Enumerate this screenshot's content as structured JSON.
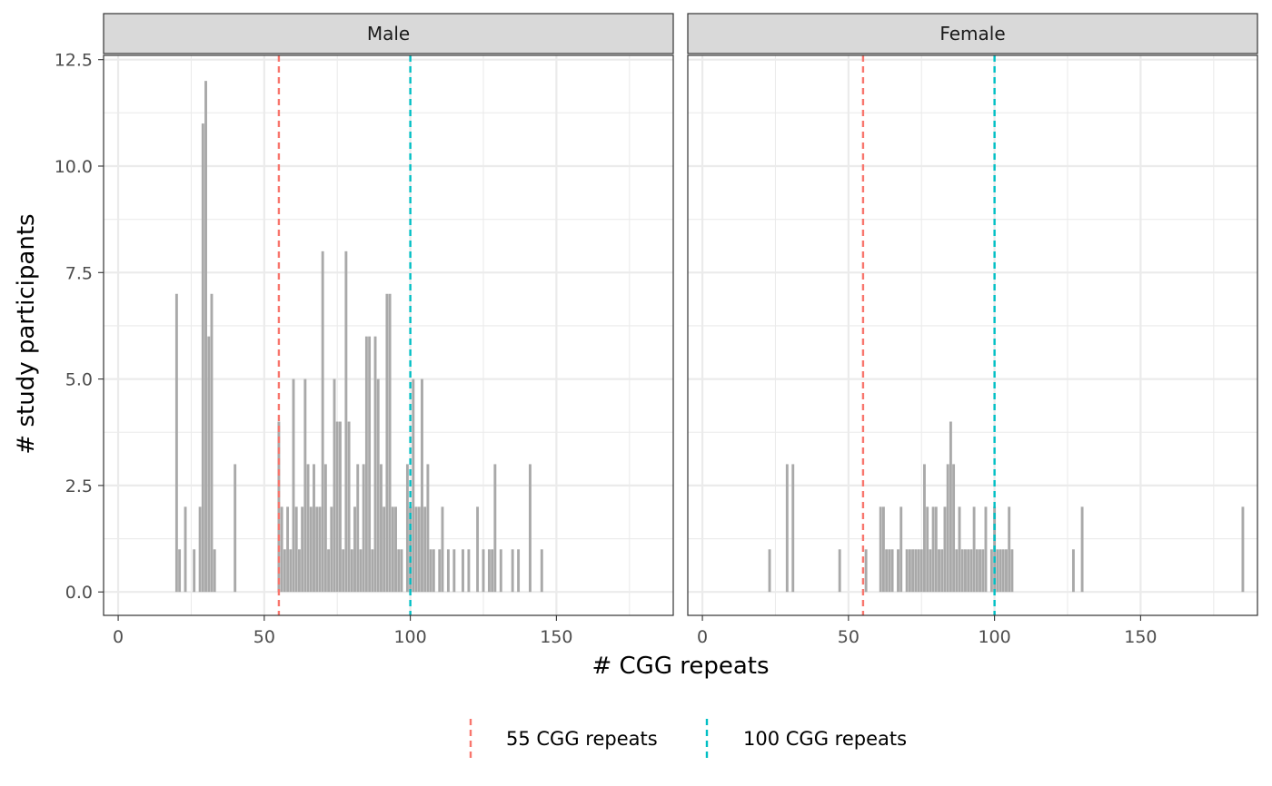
{
  "chart_data": {
    "type": "bar",
    "xlabel": "# CGG repeats",
    "ylabel": "# study participants",
    "xlim": [
      -5,
      190
    ],
    "ylim": [
      -0.55,
      12.6
    ],
    "x_ticks": [
      0,
      50,
      100,
      150
    ],
    "y_ticks": [
      0.0,
      2.5,
      5.0,
      7.5,
      10.0,
      12.5
    ],
    "y_tick_labels": [
      "0.0",
      "2.5",
      "5.0",
      "7.5",
      "10.0",
      "12.5"
    ],
    "bar_color": "#a9a9a9",
    "grid": true,
    "reference_lines": [
      {
        "x": 55,
        "label": "55 CGG repeats",
        "color": "#f8766d",
        "style": "dashed"
      },
      {
        "x": 100,
        "label": "100 CGG repeats",
        "color": "#00bfc4",
        "style": "dashed"
      }
    ],
    "legend": {
      "position": "bottom"
    },
    "panels": [
      {
        "name": "Male",
        "x": [
          20,
          21,
          23,
          26,
          28,
          29,
          30,
          31,
          32,
          33,
          40,
          55,
          56,
          57,
          58,
          59,
          60,
          61,
          62,
          63,
          64,
          65,
          66,
          67,
          68,
          69,
          70,
          71,
          72,
          73,
          74,
          75,
          76,
          77,
          78,
          79,
          80,
          81,
          82,
          83,
          84,
          85,
          86,
          87,
          88,
          89,
          90,
          91,
          92,
          93,
          94,
          95,
          96,
          97,
          99,
          100,
          101,
          102,
          103,
          104,
          105,
          106,
          107,
          108,
          110,
          111,
          113,
          115,
          118,
          120,
          123,
          125,
          127,
          128,
          129,
          131,
          135,
          137,
          141,
          145
        ],
        "values": [
          7,
          1,
          2,
          1,
          2,
          11,
          12,
          6,
          7,
          1,
          3,
          4,
          2,
          1,
          2,
          1,
          5,
          2,
          1,
          2,
          5,
          3,
          2,
          3,
          2,
          2,
          8,
          3,
          1,
          2,
          5,
          4,
          4,
          1,
          8,
          4,
          1,
          2,
          3,
          1,
          3,
          6,
          6,
          1,
          6,
          5,
          3,
          2,
          7,
          7,
          2,
          2,
          1,
          1,
          3,
          2,
          5,
          2,
          2,
          5,
          2,
          3,
          1,
          1,
          1,
          2,
          1,
          1,
          1,
          1,
          2,
          1,
          1,
          1,
          3,
          1,
          1,
          1,
          3,
          1
        ]
      },
      {
        "name": "Female",
        "x": [
          23,
          29,
          31,
          47,
          56,
          61,
          62,
          63,
          64,
          65,
          67,
          68,
          70,
          71,
          72,
          73,
          74,
          75,
          76,
          77,
          78,
          79,
          80,
          81,
          82,
          83,
          84,
          85,
          86,
          87,
          88,
          89,
          90,
          91,
          92,
          93,
          94,
          95,
          96,
          97,
          99,
          100,
          101,
          102,
          103,
          104,
          105,
          106,
          127,
          130,
          185
        ],
        "values": [
          1,
          3,
          3,
          1,
          1,
          2,
          2,
          1,
          1,
          1,
          1,
          2,
          1,
          1,
          1,
          1,
          1,
          1,
          3,
          2,
          1,
          2,
          2,
          1,
          1,
          2,
          3,
          4,
          3,
          1,
          2,
          1,
          1,
          1,
          1,
          2,
          1,
          1,
          1,
          2,
          1,
          2,
          1,
          1,
          1,
          1,
          2,
          1,
          1,
          2,
          2
        ]
      }
    ]
  }
}
